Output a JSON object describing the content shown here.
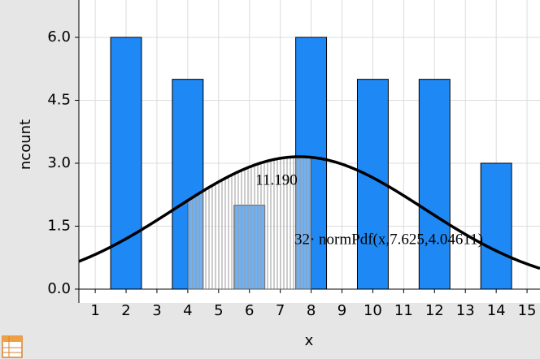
{
  "chart_data": {
    "type": "bar",
    "x_label": "x",
    "y_label": "ncount",
    "x": [
      2,
      4,
      6,
      8,
      10,
      12,
      14
    ],
    "values": [
      6,
      5,
      2,
      6,
      5,
      5,
      3
    ],
    "color": "#1e88f5",
    "xlim": [
      0.47,
      15.42
    ],
    "ylim": [
      -0.33,
      6.89
    ],
    "xticks": [
      1,
      2,
      3,
      4,
      5,
      6,
      7,
      8,
      9,
      10,
      11,
      12,
      13,
      14,
      15
    ],
    "yticks": [
      {
        "value": 0,
        "label": "0.0"
      },
      1.5,
      {
        "value": 3,
        "label": "3.0"
      },
      4.5,
      {
        "value": 6,
        "label": "6.0"
      }
    ],
    "grid": true,
    "curve": {
      "label": "32· normPdf(x,7.625,4.04611)",
      "n": 32,
      "mean": 7.625,
      "sd": 4.04611
    },
    "shade": {
      "range": [
        4,
        8
      ],
      "label": "11.190"
    }
  }
}
